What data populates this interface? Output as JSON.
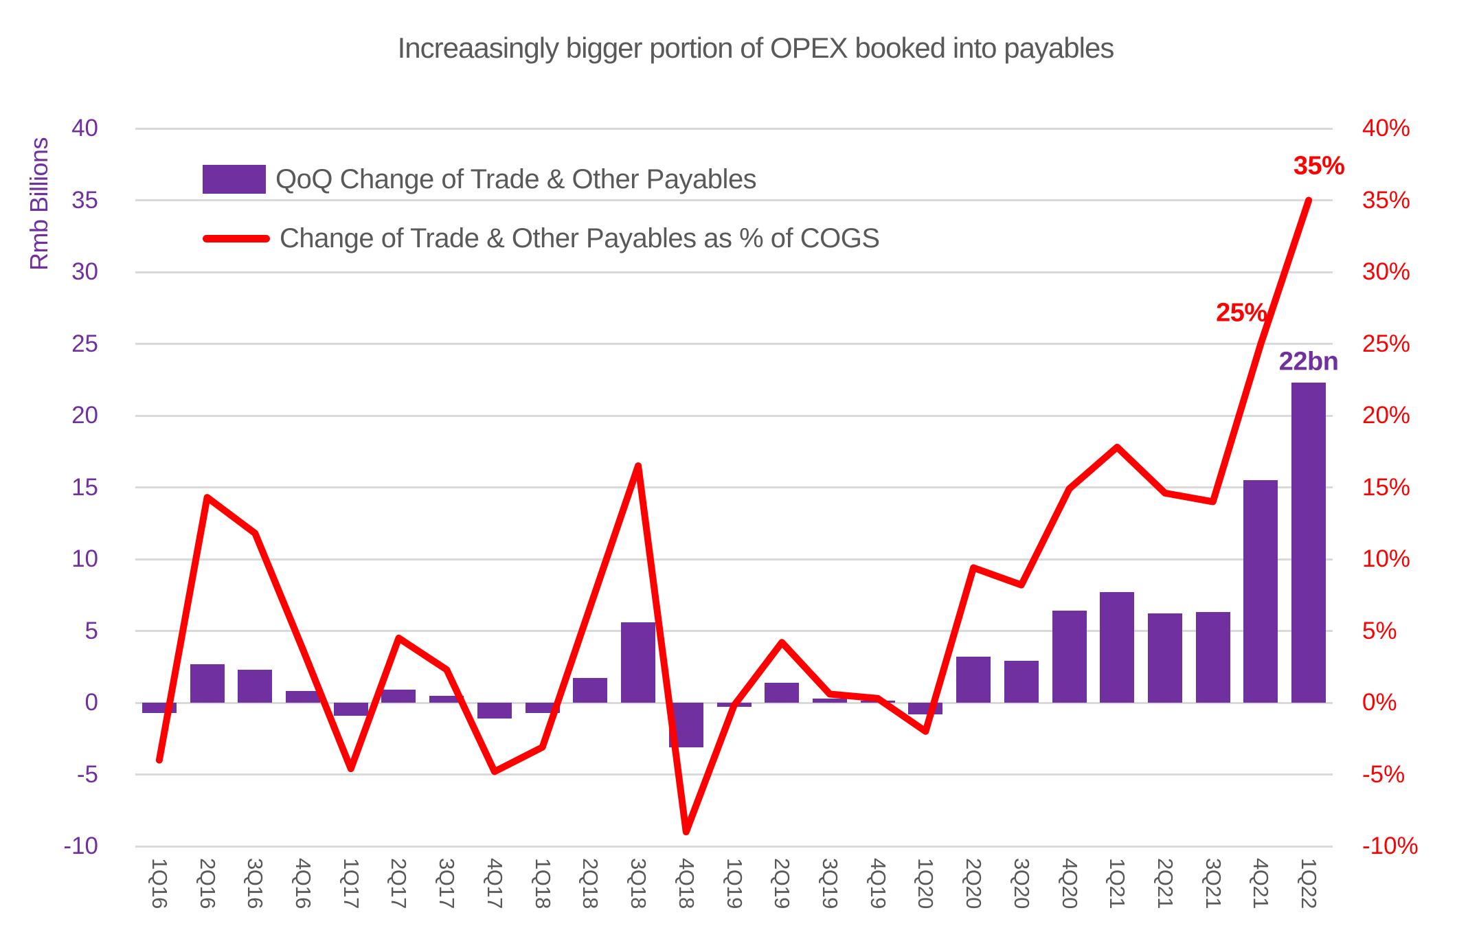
{
  "title": "Increaasingly bigger portion of OPEX booked into payables",
  "y_axis_left": {
    "title": "Rmb Billions"
  },
  "legend": {
    "items": [
      {
        "label": "QoQ Change of Trade & Other Payables",
        "swatch": "purple-rect"
      },
      {
        "label": "Change of Trade & Other Payables as % of COGS",
        "swatch": "red-line"
      }
    ]
  },
  "chart_data": {
    "type": "combo",
    "title": "Increaasingly bigger portion of OPEX booked into payables",
    "categories": [
      "1Q16",
      "2Q16",
      "3Q16",
      "4Q16",
      "1Q17",
      "2Q17",
      "3Q17",
      "4Q17",
      "1Q18",
      "2Q18",
      "3Q18",
      "4Q18",
      "1Q19",
      "2Q19",
      "3Q19",
      "4Q19",
      "1Q20",
      "2Q20",
      "3Q20",
      "4Q20",
      "1Q21",
      "2Q21",
      "3Q21",
      "4Q21",
      "1Q22"
    ],
    "series": [
      {
        "name": "QoQ Change of Trade & Other Payables",
        "type": "bar",
        "axis": "left",
        "unit": "Rmb billions",
        "color": "#7030A0",
        "values": [
          -0.7,
          2.7,
          2.3,
          0.8,
          -0.9,
          0.9,
          0.5,
          -1.1,
          -0.7,
          1.7,
          5.6,
          -3.1,
          -0.3,
          1.4,
          0.3,
          0.15,
          -0.8,
          3.2,
          2.9,
          6.4,
          7.7,
          6.2,
          6.3,
          15.5,
          22.3
        ]
      },
      {
        "name": "Change of Trade & Other Payables as % of COGS",
        "type": "line",
        "axis": "right",
        "unit": "%",
        "color": "#FF0000",
        "values": [
          -4.0,
          14.3,
          11.8,
          3.7,
          -4.6,
          4.5,
          2.3,
          -4.8,
          -3.1,
          6.7,
          16.5,
          -9.0,
          -0.2,
          4.2,
          0.6,
          0.3,
          -2.0,
          9.4,
          8.2,
          14.9,
          17.8,
          14.6,
          14.0,
          25.0,
          35.0
        ]
      }
    ],
    "left_axis": {
      "label": "Rmb Billions",
      "range": [
        -10,
        40
      ],
      "tick_step": 5,
      "tick_color": "#7030A0",
      "tick_suffix": ""
    },
    "right_axis": {
      "label": "",
      "range": [
        -10,
        40
      ],
      "tick_step": 5,
      "tick_color": "#FF0000",
      "tick_suffix": "%"
    },
    "grid": true,
    "legend_position": "top-left",
    "annotations": [
      {
        "text": "25%",
        "series": 1,
        "index": 23,
        "category": "4Q21",
        "color": "#FF0000",
        "placement": "above-left"
      },
      {
        "text": "35%",
        "series": 1,
        "index": 24,
        "category": "1Q22",
        "color": "#FF0000",
        "placement": "above-right"
      },
      {
        "text": "22bn",
        "series": 0,
        "index": 24,
        "category": "1Q22",
        "color": "#7030A0",
        "placement": "above"
      }
    ],
    "colors": {
      "grid": "#D9D9D9",
      "title_text": "#595959",
      "x_tick_text": "#595959",
      "background": "#FFFFFF"
    }
  }
}
